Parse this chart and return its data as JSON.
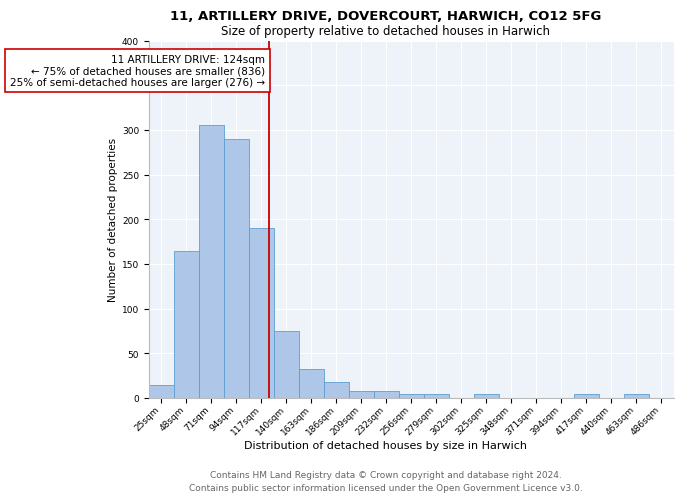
{
  "title1": "11, ARTILLERY DRIVE, DOVERCOURT, HARWICH, CO12 5FG",
  "title2": "Size of property relative to detached houses in Harwich",
  "xlabel": "Distribution of detached houses by size in Harwich",
  "ylabel": "Number of detached properties",
  "categories": [
    "25sqm",
    "48sqm",
    "71sqm",
    "94sqm",
    "117sqm",
    "140sqm",
    "163sqm",
    "186sqm",
    "209sqm",
    "232sqm",
    "256sqm",
    "279sqm",
    "302sqm",
    "325sqm",
    "348sqm",
    "371sqm",
    "394sqm",
    "417sqm",
    "440sqm",
    "463sqm",
    "486sqm"
  ],
  "values": [
    15,
    165,
    305,
    290,
    190,
    75,
    32,
    18,
    8,
    8,
    4,
    5,
    0,
    4,
    0,
    0,
    0,
    4,
    0,
    4,
    0
  ],
  "bar_color": "#aec6e8",
  "bar_edge_color": "#5a9fd4",
  "vline_color": "#cc0000",
  "annotation_text": "11 ARTILLERY DRIVE: 124sqm\n← 75% of detached houses are smaller (836)\n25% of semi-detached houses are larger (276) →",
  "annotation_box_color": "white",
  "annotation_box_edge_color": "#cc0000",
  "ylim": [
    0,
    400
  ],
  "yticks": [
    0,
    50,
    100,
    150,
    200,
    250,
    300,
    350,
    400
  ],
  "background_color": "#eef2f9",
  "footer1": "Contains HM Land Registry data © Crown copyright and database right 2024.",
  "footer2": "Contains public sector information licensed under the Open Government Licence v3.0.",
  "title1_fontsize": 9.5,
  "title2_fontsize": 8.5,
  "xlabel_fontsize": 8,
  "ylabel_fontsize": 7.5,
  "tick_fontsize": 6.5,
  "footer_fontsize": 6.5,
  "annotation_fontsize": 7.5
}
